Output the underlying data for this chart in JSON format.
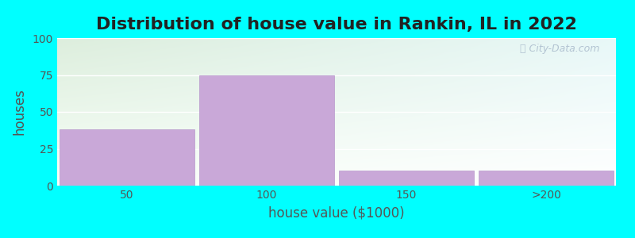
{
  "title": "Distribution of house value in Rankin, IL in 2022",
  "xlabel": "house value ($1000)",
  "ylabel": "houses",
  "categories": [
    "50",
    "100",
    "150",
    ">200"
  ],
  "values": [
    38,
    75,
    10,
    10
  ],
  "bar_color": "#c9a8d8",
  "bar_edge_color": "#b898cc",
  "ylim": [
    0,
    100
  ],
  "yticks": [
    0,
    25,
    50,
    75,
    100
  ],
  "background_color": "#00ffff",
  "plot_bg_top_left": "#ddeedd",
  "plot_bg_top_right": "#ddeedd",
  "plot_bg_bottom": "#f8fff8",
  "title_fontsize": 16,
  "axis_label_fontsize": 12,
  "tick_fontsize": 10,
  "watermark": "City-Data.com",
  "bar_width": 0.97
}
